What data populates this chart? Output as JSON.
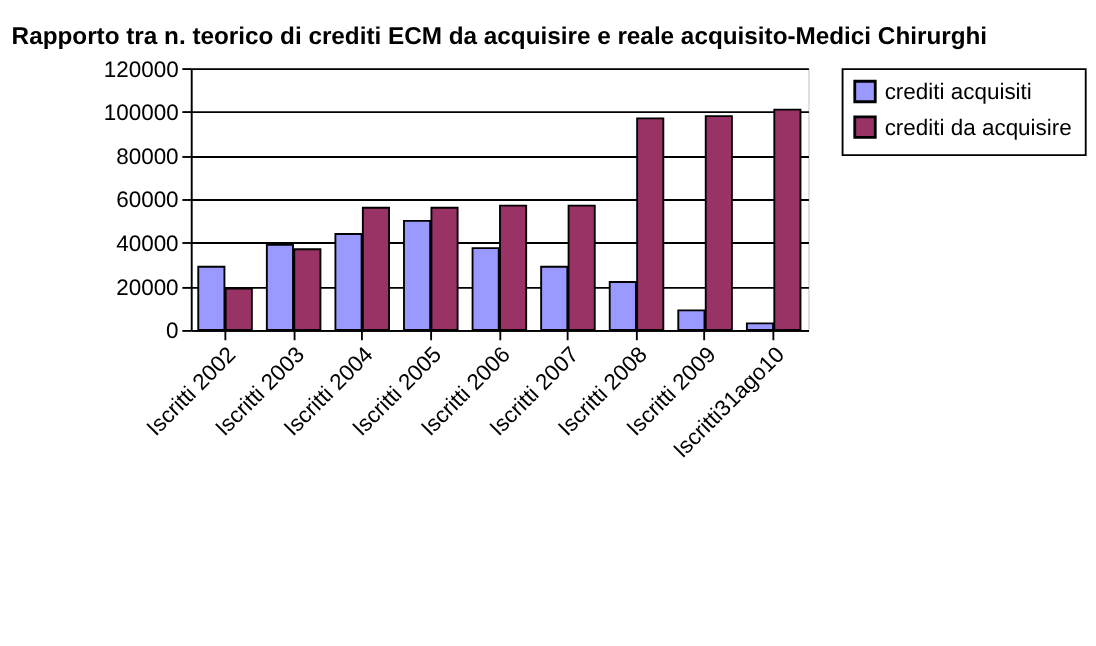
{
  "chart_data": {
    "type": "bar",
    "title": "Rapporto tra n. teorico di crediti ECM da acquisire e reale acquisito-Medici Chirurghi",
    "categories": [
      "Iscritti 2002",
      "Iscritti 2003",
      "Iscritti 2004",
      "Iscritti 2005",
      "Iscritti 2006",
      "Iscritti 2007",
      "Iscritti 2008",
      "Iscritti 2009",
      "Iscritti31ago10"
    ],
    "series": [
      {
        "name": "crediti acquisiti",
        "color": "#9999ff",
        "values": [
          29000,
          39000,
          44000,
          50000,
          37500,
          29000,
          22000,
          9000,
          3000
        ]
      },
      {
        "name": "crediti da acquisire",
        "color": "#993366",
        "values": [
          19000,
          37000,
          56000,
          56000,
          57000,
          57000,
          97000,
          98000,
          101000
        ]
      }
    ],
    "ylim": [
      0,
      120000
    ],
    "yticks": [
      0,
      20000,
      40000,
      60000,
      80000,
      100000,
      120000
    ],
    "grid": "y",
    "legend": "right"
  }
}
